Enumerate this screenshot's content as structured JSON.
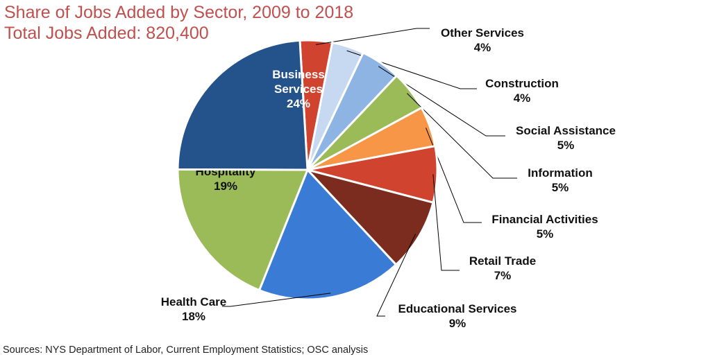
{
  "title": "Share of Jobs Added by Sector, 2009 to 2018",
  "subtitle": "Total Jobs Added: 820,400",
  "source": "Sources: NYS Department of Labor, Current Employment Statistics; OSC analysis",
  "chart_data": {
    "type": "pie",
    "unit": "%",
    "slices": [
      {
        "label": "Other Services",
        "value": 4,
        "color": "#d0442f"
      },
      {
        "label": "Construction",
        "value": 4,
        "color": "#c6d9f1"
      },
      {
        "label": "Social Assistance",
        "value": 5,
        "color": "#8db4e2"
      },
      {
        "label": "Information",
        "value": 5,
        "color": "#9bbb59"
      },
      {
        "label": "Financial Activities",
        "value": 5,
        "color": "#f79646"
      },
      {
        "label": "Retail Trade",
        "value": 7,
        "color": "#d0442f"
      },
      {
        "label": "Educational Services",
        "value": 9,
        "color": "#7b2c1e"
      },
      {
        "label": "Health Care",
        "value": 18,
        "color": "#3a7bd5"
      },
      {
        "label": "Leisure and Hospitality",
        "value": 19,
        "color": "#9bbb59"
      },
      {
        "label": "Business Services",
        "value": 24,
        "color": "#24528a"
      }
    ]
  }
}
